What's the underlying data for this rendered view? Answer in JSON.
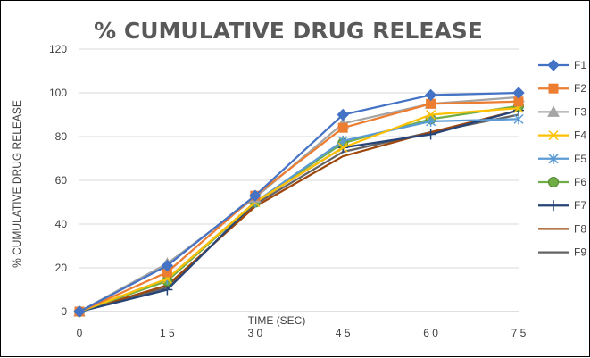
{
  "chart_data": {
    "type": "line",
    "title": "% CUMULATIVE DRUG RELEASE",
    "xlabel": "TIME (SEC)",
    "ylabel": "% CUMULATIVE DRUG RELEASE",
    "x": [
      0,
      15,
      30,
      45,
      60,
      75
    ],
    "x_tick_labels": [
      "0",
      "1 5",
      "3 0",
      "4 5",
      "6 0",
      "7 5"
    ],
    "y_ticks": [
      0,
      20,
      40,
      60,
      80,
      100,
      120
    ],
    "ylim": [
      0,
      120
    ],
    "grid": "horizontal",
    "legend_position": "right",
    "series": [
      {
        "name": "F1",
        "color": "#4472C4",
        "marker": "diamond",
        "values": [
          0,
          21,
          53,
          90,
          99,
          100
        ]
      },
      {
        "name": "F2",
        "color": "#ED7D31",
        "marker": "square",
        "values": [
          0,
          18,
          53,
          84,
          95,
          96
        ]
      },
      {
        "name": "F3",
        "color": "#A5A5A5",
        "marker": "triangle",
        "values": [
          0,
          22,
          52,
          86,
          95,
          98
        ]
      },
      {
        "name": "F4",
        "color": "#FFC000",
        "marker": "x",
        "values": [
          0,
          15,
          50,
          75,
          90,
          93
        ]
      },
      {
        "name": "F5",
        "color": "#5B9BD5",
        "marker": "star",
        "values": [
          0,
          15,
          50,
          78,
          87,
          88
        ]
      },
      {
        "name": "F6",
        "color": "#70AD47",
        "marker": "circle",
        "values": [
          0,
          14,
          50,
          77,
          88,
          94
        ]
      },
      {
        "name": "F7",
        "color": "#264478",
        "marker": "plus",
        "values": [
          0,
          10,
          50,
          75,
          81,
          92
        ]
      },
      {
        "name": "F8",
        "color": "#9E480E",
        "marker": "none",
        "values": [
          0,
          12,
          48,
          71,
          82,
          92
        ]
      },
      {
        "name": "F9",
        "color": "#636363",
        "marker": "none",
        "values": [
          0,
          11,
          49,
          73,
          82,
          90
        ]
      }
    ]
  }
}
